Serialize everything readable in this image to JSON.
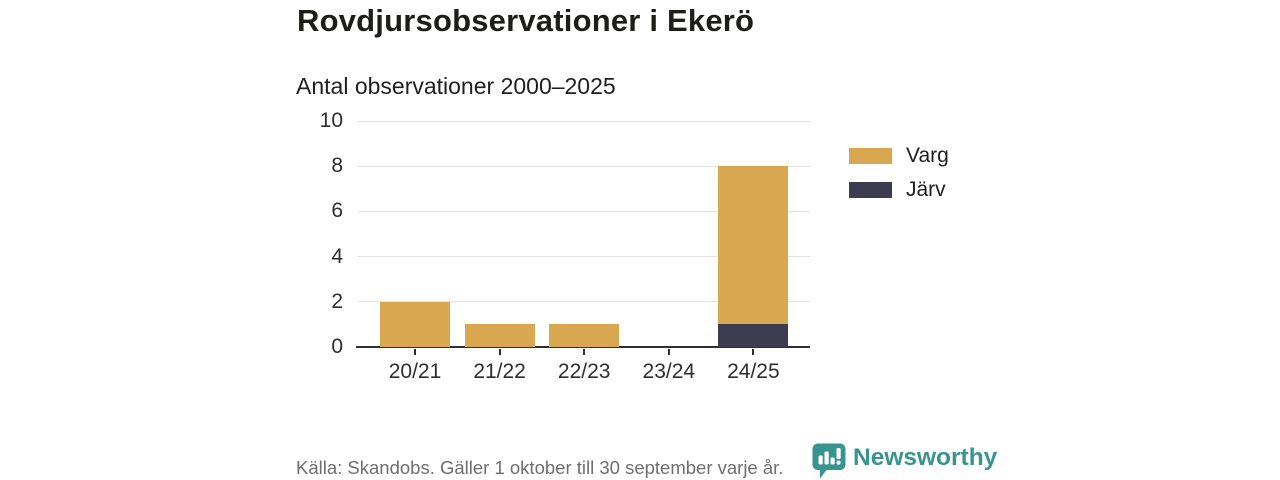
{
  "chart_data": {
    "type": "bar",
    "stacked": true,
    "title": "Rovdjursobservationer i Ekerö",
    "subtitle": "Antal observationer 2000–2025",
    "categories": [
      "20/21",
      "21/22",
      "22/23",
      "23/24",
      "24/25"
    ],
    "series": [
      {
        "name": "Varg",
        "color": "#d9a750",
        "values": [
          2,
          1,
          1,
          0,
          7
        ]
      },
      {
        "name": "Järv",
        "color": "#3d3c50",
        "values": [
          0,
          0,
          0,
          0,
          1
        ]
      }
    ],
    "stack_totals": [
      2,
      1,
      1,
      0,
      8
    ],
    "ylabel": "",
    "xlabel": "",
    "yticks": [
      0,
      2,
      4,
      6,
      8,
      10
    ],
    "ylim": [
      0,
      10
    ],
    "grid": true,
    "legend_position": "right",
    "colors": {
      "gridline": "#e3e3e3",
      "axis": "#2e2e2e",
      "text": "#2e2e2e"
    }
  },
  "footer": {
    "source": "Källa: Skandobs. Gäller 1 oktober till 30 september varje år.",
    "brand": "Newsworthy",
    "brand_color": "#38948e",
    "logo_icon": "newsworthy-speech-bubble-bar-chart-icon"
  }
}
